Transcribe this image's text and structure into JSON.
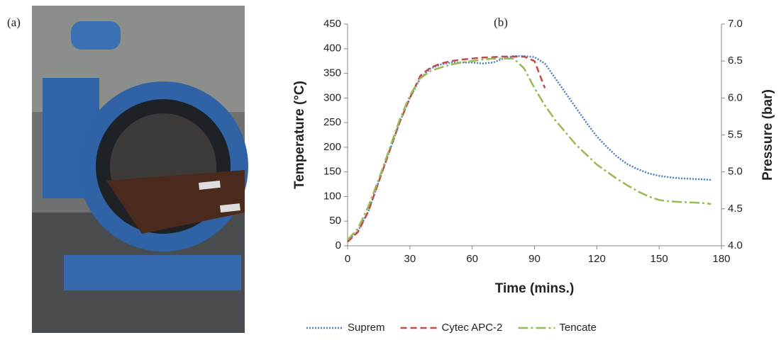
{
  "panel_a_label": "(a)",
  "chart_data": {
    "type": "line",
    "panel_label": "(b)",
    "xlabel": "Time (mins.)",
    "ylabel": "Temperature (°C)",
    "y2label": "Pressure (bar)",
    "x": [
      0,
      5,
      10,
      15,
      20,
      25,
      30,
      35,
      40,
      45,
      50,
      55,
      60,
      65,
      70,
      75,
      80,
      85,
      90,
      95,
      100,
      105,
      110,
      115,
      120,
      125,
      130,
      135,
      140,
      145,
      150,
      155,
      160,
      165,
      170,
      175
    ],
    "xlim": [
      0,
      180
    ],
    "xticks": [
      0,
      30,
      60,
      90,
      120,
      150,
      180
    ],
    "ylim": [
      0,
      450
    ],
    "yticks": [
      0,
      50,
      100,
      150,
      200,
      250,
      300,
      350,
      400,
      450
    ],
    "y2lim": [
      4,
      7
    ],
    "y2ticks": [
      {
        "value": 4,
        "label": "4.0"
      },
      {
        "value": 4.5,
        "label": "4.5"
      },
      {
        "value": 5,
        "label": "5.0"
      },
      {
        "value": 5.5,
        "label": "5.5"
      },
      {
        "value": 6,
        "label": "6.0"
      },
      {
        "value": 6.5,
        "label": "6.5"
      },
      {
        "value": 7,
        "label": "7.0"
      }
    ],
    "series": [
      {
        "name": "Suprem",
        "color": "#4a7ebb",
        "dash": "2,2",
        "values": [
          10,
          30,
          70,
          130,
          190,
          250,
          300,
          340,
          360,
          368,
          372,
          372,
          372,
          370,
          372,
          380,
          385,
          385,
          383,
          370,
          340,
          310,
          280,
          250,
          222,
          200,
          180,
          165,
          155,
          147,
          142,
          139,
          137,
          136,
          135,
          134
        ]
      },
      {
        "name": "Cytec APC-2",
        "color": "#be4b48",
        "dash": "9,5",
        "values": [
          8,
          28,
          70,
          130,
          190,
          250,
          300,
          345,
          362,
          370,
          375,
          378,
          380,
          382,
          383,
          384,
          384,
          384,
          375,
          320,
          null,
          null,
          null,
          null,
          null,
          null,
          null,
          null,
          null,
          null,
          null,
          null,
          null,
          null,
          null,
          null
        ]
      },
      {
        "name": "Tencate",
        "color": "#98b954",
        "dash": "14,4,3,4",
        "values": [
          12,
          35,
          80,
          135,
          195,
          255,
          305,
          340,
          355,
          362,
          368,
          372,
          375,
          378,
          380,
          380,
          380,
          360,
          320,
          285,
          255,
          230,
          205,
          185,
          165,
          150,
          135,
          122,
          110,
          100,
          93,
          90,
          89,
          88,
          87,
          85
        ]
      }
    ]
  }
}
